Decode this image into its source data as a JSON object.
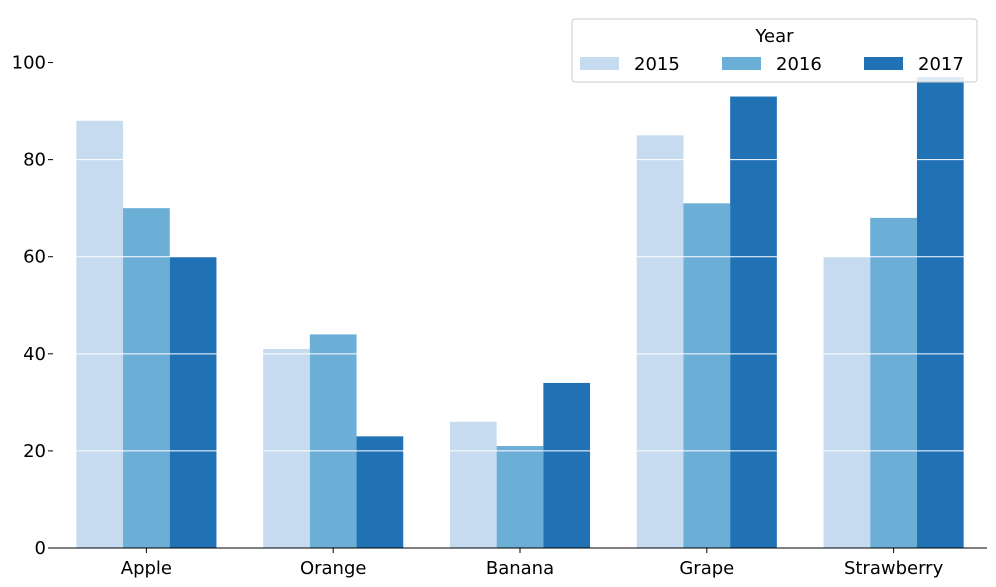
{
  "chart_data": {
    "type": "bar",
    "categories": [
      "Apple",
      "Orange",
      "Banana",
      "Grape",
      "Strawberry"
    ],
    "series": [
      {
        "name": "2015",
        "values": [
          88,
          41,
          26,
          85,
          60
        ],
        "color": "#c6dbef"
      },
      {
        "name": "2016",
        "values": [
          70,
          44,
          21,
          71,
          68
        ],
        "color": "#6baed6"
      },
      {
        "name": "2017",
        "values": [
          60,
          23,
          34,
          93,
          97
        ],
        "color": "#2171b5"
      }
    ],
    "ylim": [
      0,
      110
    ],
    "yticks": [
      "0",
      "20",
      "40",
      "60",
      "80",
      "100"
    ],
    "legend": {
      "title": "Year",
      "placement": "top-right"
    },
    "grid": {
      "y": true,
      "color": "#ffffff"
    }
  }
}
